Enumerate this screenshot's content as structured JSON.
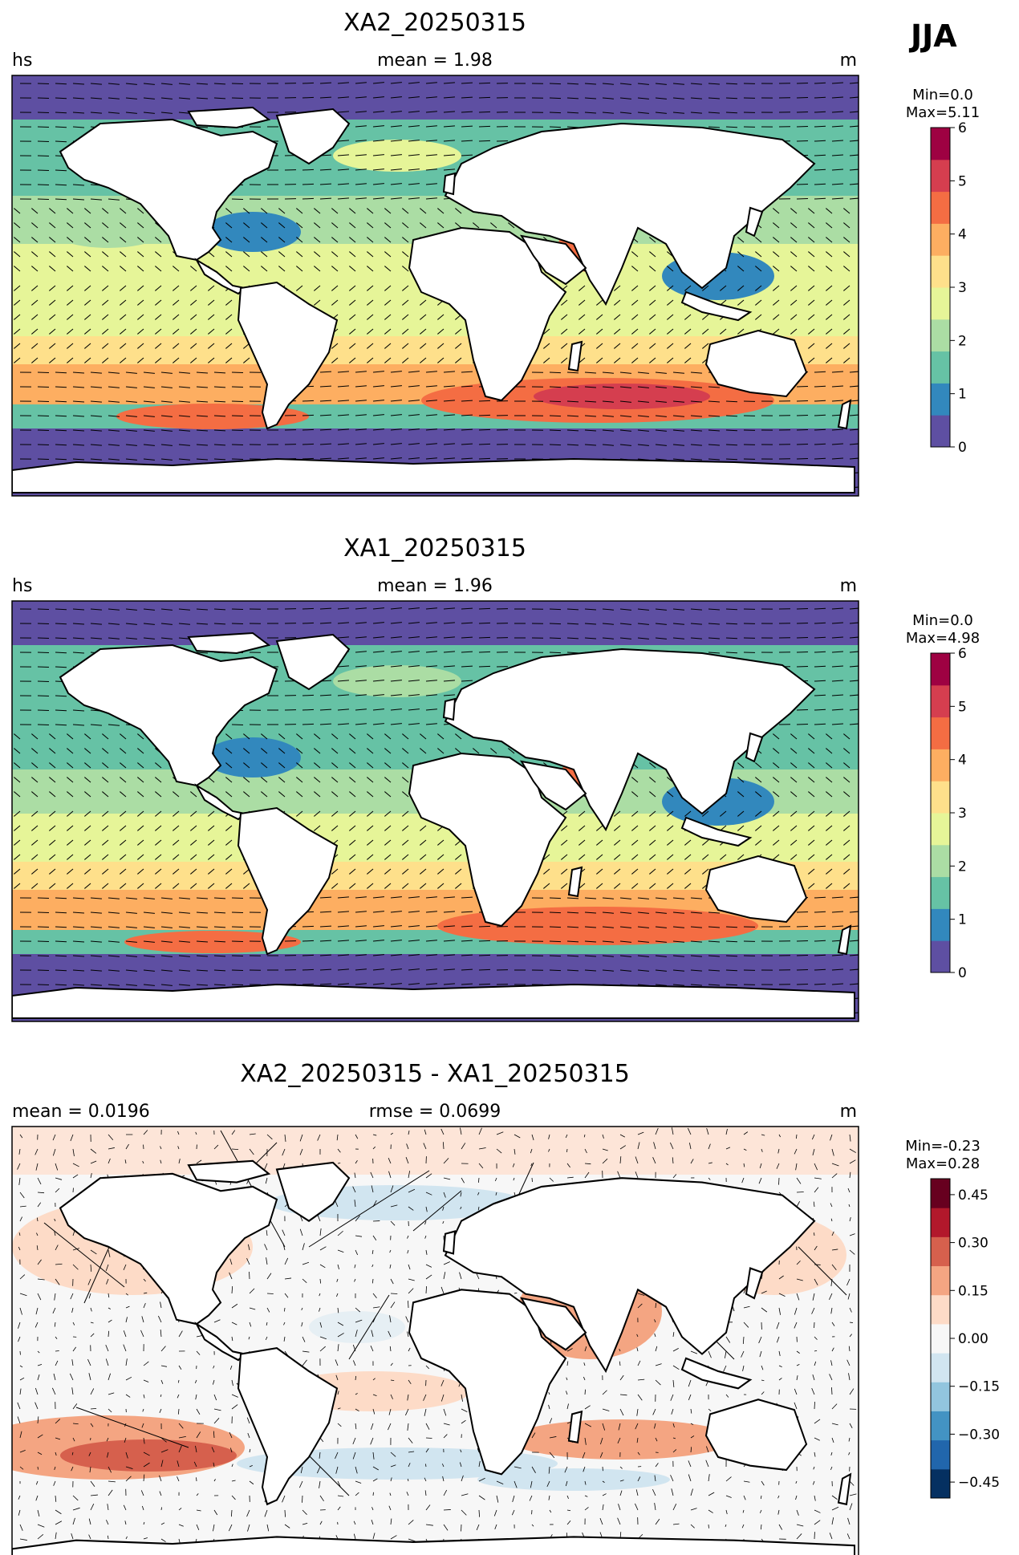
{
  "season": "JJA",
  "panels": [
    {
      "title": "XA2_20250315",
      "left_label": "hs",
      "center_label": "mean = 1.98",
      "right_label": "m",
      "minmax": [
        "Min=0.0",
        "Max=5.11"
      ],
      "colorbar": {
        "ticks": [
          "0",
          "1",
          "2",
          "3",
          "4",
          "5",
          "6"
        ],
        "colors": [
          "#5e4fa2",
          "#3288bd",
          "#66c2a5",
          "#abdda4",
          "#e6f598",
          "#fee08b",
          "#fdae61",
          "#f46d43",
          "#d53e4f",
          "#9e0142"
        ]
      }
    },
    {
      "title": "XA1_20250315",
      "left_label": "hs",
      "center_label": "mean = 1.96",
      "right_label": "m",
      "minmax": [
        "Min=0.0",
        "Max=4.98"
      ],
      "colorbar": {
        "ticks": [
          "0",
          "1",
          "2",
          "3",
          "4",
          "5",
          "6"
        ],
        "colors": [
          "#5e4fa2",
          "#3288bd",
          "#66c2a5",
          "#abdda4",
          "#e6f598",
          "#fee08b",
          "#fdae61",
          "#f46d43",
          "#d53e4f",
          "#9e0142"
        ]
      }
    },
    {
      "title": "XA2_20250315 - XA1_20250315",
      "left_label": "mean = 0.0196",
      "center_label": "rmse = 0.0699",
      "right_label": "m",
      "minmax": [
        "Min=-0.23",
        "Max=0.28"
      ],
      "colorbar": {
        "ticks": [
          "0.45",
          "0.30",
          "0.15",
          "0.00",
          "−0.15",
          "−0.30",
          "−0.45"
        ],
        "colors": [
          "#053061",
          "#2166ac",
          "#4393c3",
          "#92c5de",
          "#d1e5f0",
          "#f7f7f7",
          "#fddbc7",
          "#f4a582",
          "#d6604d",
          "#b2182b",
          "#67001f"
        ]
      }
    }
  ],
  "chart_data": [
    {
      "type": "heatmap",
      "title": "XA2_20250315",
      "variable": "hs",
      "units": "m",
      "mean": 1.98,
      "min": 0.0,
      "max": 5.11,
      "colorbar_range": [
        0,
        6
      ],
      "colorbar_ticks": [
        0,
        1,
        2,
        3,
        4,
        5,
        6
      ],
      "regions_approx": [
        {
          "region": "Arctic",
          "value": 0.3
        },
        {
          "region": "North Pacific",
          "value": 2.0
        },
        {
          "region": "North Atlantic",
          "value": 1.8
        },
        {
          "region": "Tropical Pacific",
          "value": 2.5
        },
        {
          "region": "Arabian Sea",
          "value": 4.5
        },
        {
          "region": "South Pacific 40S",
          "value": 3.8
        },
        {
          "region": "South Indian 40S",
          "value": 5.0
        },
        {
          "region": "Antarctic",
          "value": 0.3
        }
      ],
      "overlay": "wave direction arrows"
    },
    {
      "type": "heatmap",
      "title": "XA1_20250315",
      "variable": "hs",
      "units": "m",
      "mean": 1.96,
      "min": 0.0,
      "max": 4.98,
      "colorbar_range": [
        0,
        6
      ],
      "colorbar_ticks": [
        0,
        1,
        2,
        3,
        4,
        5,
        6
      ],
      "regions_approx": [
        {
          "region": "Arctic",
          "value": 0.3
        },
        {
          "region": "North Pacific",
          "value": 1.8
        },
        {
          "region": "North Atlantic",
          "value": 1.7
        },
        {
          "region": "Tropical Pacific",
          "value": 2.3
        },
        {
          "region": "Arabian Sea",
          "value": 4.3
        },
        {
          "region": "South Pacific 40S",
          "value": 3.7
        },
        {
          "region": "South Indian 40S",
          "value": 4.8
        },
        {
          "region": "Antarctic",
          "value": 0.3
        }
      ],
      "overlay": "wave direction arrows"
    },
    {
      "type": "heatmap",
      "title": "XA2_20250315 - XA1_20250315",
      "units": "m",
      "mean": 0.0196,
      "rmse": 0.0699,
      "min": -0.23,
      "max": 0.28,
      "colorbar_range": [
        -0.5,
        0.5
      ],
      "colorbar_ticks": [
        0.45,
        0.3,
        0.15,
        0.0,
        -0.15,
        -0.3,
        -0.45
      ],
      "regions_approx": [
        {
          "region": "Arabian Sea",
          "value": 0.25
        },
        {
          "region": "South Pacific 40S",
          "value": 0.22
        },
        {
          "region": "North Pacific",
          "value": 0.1
        },
        {
          "region": "North Atlantic 50N",
          "value": -0.1
        },
        {
          "region": "Southern Ocean 50S",
          "value": -0.1
        },
        {
          "region": "Tropical Atlantic",
          "value": -0.03
        }
      ],
      "overlay": "wave direction difference arrows"
    }
  ]
}
